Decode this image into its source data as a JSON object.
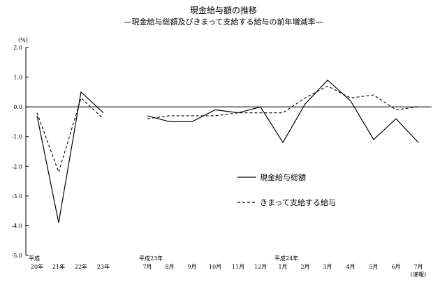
{
  "chart_data": {
    "type": "line",
    "title": "現金給与額の推移",
    "subtitle": "—現金給与総額及びきまって支給する給与の前年増減率—",
    "ylabel": "(%)",
    "ylim": [
      -5.0,
      2.0
    ],
    "yticks": [
      "2.0",
      "1.0",
      "0.0",
      "-1.0",
      "-2.0",
      "-3.0",
      "-4.0",
      "-5.0"
    ],
    "categories": [
      "20年",
      "21年",
      "22年",
      "23年",
      "",
      "7月",
      "8月",
      "9月",
      "10月",
      "11月",
      "12月",
      "1月",
      "2月",
      "3月",
      "4月",
      "5月",
      "6月",
      "7月"
    ],
    "category_prefixes": [
      {
        "index": 0,
        "text": "平成"
      },
      {
        "index": 5,
        "text": "平成23年"
      },
      {
        "index": 11,
        "text": "平成24年"
      }
    ],
    "category_suffix": {
      "index": 17,
      "text": "(速報)"
    },
    "legend_position": "center-right",
    "series": [
      {
        "name": "現金給与総額",
        "style": "solid",
        "color": "#000000",
        "values": [
          -0.3,
          -3.9,
          0.5,
          -0.2,
          null,
          -0.3,
          -0.5,
          -0.5,
          -0.1,
          -0.2,
          0.0,
          -1.2,
          0.1,
          0.9,
          0.2,
          -1.1,
          -0.4,
          -1.2
        ]
      },
      {
        "name": "きまって支給する給与",
        "style": "dashed",
        "color": "#000000",
        "values": [
          -0.2,
          -2.2,
          0.3,
          -0.4,
          null,
          -0.4,
          -0.3,
          -0.3,
          -0.3,
          -0.2,
          -0.2,
          -0.2,
          0.3,
          0.7,
          0.3,
          0.4,
          -0.1,
          0.0
        ]
      }
    ]
  }
}
